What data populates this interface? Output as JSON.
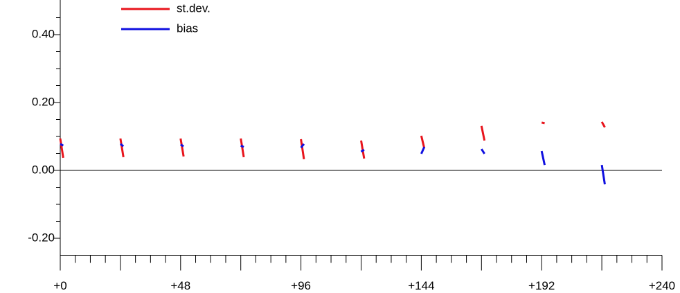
{
  "chart_data": {
    "type": "line",
    "x": [
      0,
      1.2,
      null,
      24,
      25.2,
      null,
      48,
      49.2,
      null,
      72,
      73.2,
      null,
      96,
      97.2,
      null,
      120,
      121.2,
      null,
      144,
      145.2,
      null,
      168,
      169.2,
      null,
      192,
      193.2,
      null,
      216,
      217.2
    ],
    "series": [
      {
        "name": "st.dev.",
        "color": "#e8141c",
        "values": [
          0.094,
          0.037,
          null,
          0.094,
          0.039,
          null,
          0.094,
          0.041,
          null,
          0.094,
          0.039,
          null,
          0.092,
          0.033,
          null,
          0.088,
          0.035,
          null,
          0.102,
          0.065,
          null,
          0.131,
          0.088,
          null,
          0.141,
          0.139,
          null,
          0.143,
          0.127
        ]
      },
      {
        "name": "bias",
        "color": "#1010e0",
        "values": [
          0.078,
          0.073,
          null,
          0.078,
          0.071,
          null,
          0.076,
          0.071,
          null,
          0.073,
          0.069,
          null,
          0.067,
          0.078,
          null,
          0.055,
          0.061,
          null,
          0.049,
          0.069,
          null,
          0.063,
          0.049,
          null,
          0.057,
          0.016,
          null,
          0.016,
          -0.041
        ]
      }
    ],
    "xlim": [
      0,
      240
    ],
    "ylim": [
      -0.25,
      0.5
    ],
    "xticks": [
      {
        "value": 0,
        "label": "+0"
      },
      {
        "value": 48,
        "label": "+48"
      },
      {
        "value": 96,
        "label": "+96"
      },
      {
        "value": 144,
        "label": "+144"
      },
      {
        "value": 192,
        "label": "+192"
      },
      {
        "value": 240,
        "label": "+240"
      }
    ],
    "xminorticks": [
      6,
      12,
      18,
      24,
      30,
      36,
      42,
      54,
      60,
      66,
      72,
      78,
      84,
      90,
      102,
      108,
      114,
      120,
      126,
      132,
      138,
      150,
      156,
      162,
      168,
      174,
      180,
      186,
      198,
      204,
      210,
      216,
      222,
      228,
      234
    ],
    "yticks": [
      {
        "value": -0.2,
        "label": "-0.20"
      },
      {
        "value": 0,
        "label": "0.00"
      },
      {
        "value": 0.2,
        "label": "0.20"
      },
      {
        "value": 0.4,
        "label": "0.40"
      }
    ],
    "yminorticks": [
      -0.15,
      -0.1,
      -0.05,
      0.05,
      0.1,
      0.15,
      0.25,
      0.3,
      0.35,
      0.45
    ],
    "legend": "upper left"
  }
}
